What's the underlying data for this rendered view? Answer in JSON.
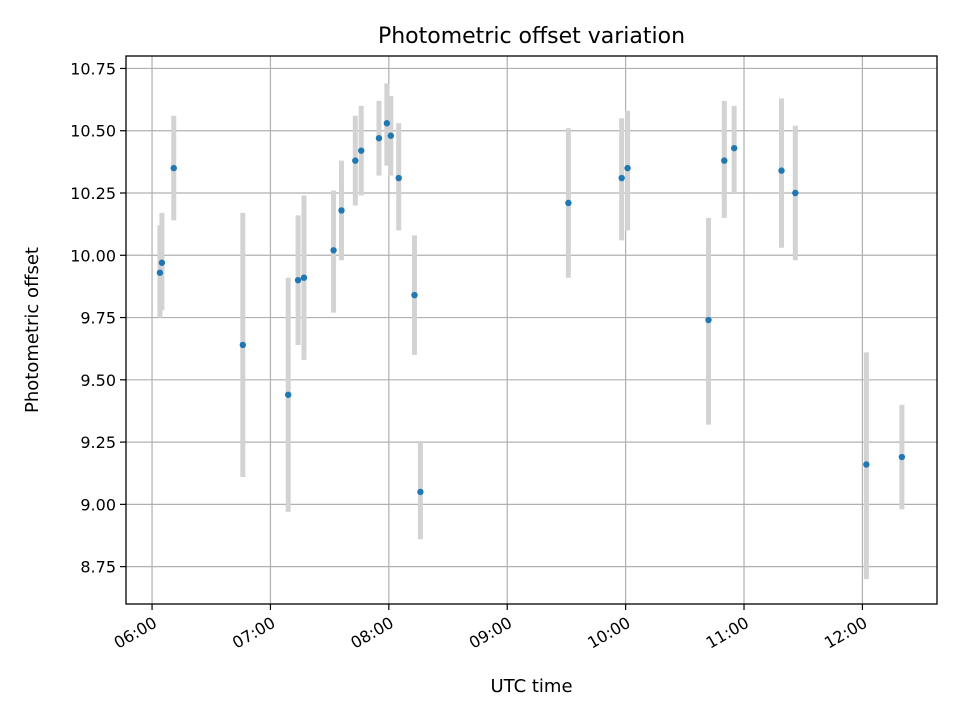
{
  "chart_data": {
    "type": "scatter",
    "title": "Photometric offset variation",
    "xlabel": "UTC time",
    "ylabel": "Photometric offset",
    "xlim_hours": [
      5.78,
      12.63
    ],
    "ylim": [
      8.6,
      10.8
    ],
    "grid": true,
    "x_ticks": [
      {
        "hour": 6,
        "label": "06:00"
      },
      {
        "hour": 7,
        "label": "07:00"
      },
      {
        "hour": 8,
        "label": "08:00"
      },
      {
        "hour": 9,
        "label": "09:00"
      },
      {
        "hour": 10,
        "label": "10:00"
      },
      {
        "hour": 11,
        "label": "11:00"
      },
      {
        "hour": 12,
        "label": "12:00"
      }
    ],
    "y_ticks": [
      {
        "value": 8.75,
        "label": "8.75"
      },
      {
        "value": 9.0,
        "label": "9.00"
      },
      {
        "value": 9.25,
        "label": "9.25"
      },
      {
        "value": 9.5,
        "label": "9.50"
      },
      {
        "value": 9.75,
        "label": "9.75"
      },
      {
        "value": 10.0,
        "label": "10.00"
      },
      {
        "value": 10.25,
        "label": "10.25"
      },
      {
        "value": 10.5,
        "label": "10.50"
      },
      {
        "value": 10.75,
        "label": "10.75"
      }
    ],
    "colors": {
      "point": "#1f77b4",
      "errorbar": "#d3d3d3"
    },
    "points": [
      {
        "time": "06:04",
        "y": 9.93,
        "lo": 9.75,
        "hi": 10.12
      },
      {
        "time": "06:05",
        "y": 9.97,
        "lo": 9.78,
        "hi": 10.17
      },
      {
        "time": "06:11",
        "y": 10.35,
        "lo": 10.14,
        "hi": 10.56
      },
      {
        "time": "06:46",
        "y": 9.64,
        "lo": 9.11,
        "hi": 10.17
      },
      {
        "time": "07:09",
        "y": 9.44,
        "lo": 8.97,
        "hi": 9.91
      },
      {
        "time": "07:14",
        "y": 9.9,
        "lo": 9.64,
        "hi": 10.16
      },
      {
        "time": "07:17",
        "y": 9.91,
        "lo": 9.58,
        "hi": 10.24
      },
      {
        "time": "07:32",
        "y": 10.02,
        "lo": 9.77,
        "hi": 10.26
      },
      {
        "time": "07:36",
        "y": 10.18,
        "lo": 9.98,
        "hi": 10.38
      },
      {
        "time": "07:43",
        "y": 10.38,
        "lo": 10.2,
        "hi": 10.56
      },
      {
        "time": "07:46",
        "y": 10.42,
        "lo": 10.24,
        "hi": 10.6
      },
      {
        "time": "07:55",
        "y": 10.47,
        "lo": 10.32,
        "hi": 10.62
      },
      {
        "time": "07:59",
        "y": 10.53,
        "lo": 10.36,
        "hi": 10.69
      },
      {
        "time": "08:01",
        "y": 10.48,
        "lo": 10.32,
        "hi": 10.64
      },
      {
        "time": "08:05",
        "y": 10.31,
        "lo": 10.1,
        "hi": 10.53
      },
      {
        "time": "08:13",
        "y": 9.84,
        "lo": 9.6,
        "hi": 10.08
      },
      {
        "time": "08:16",
        "y": 9.05,
        "lo": 8.86,
        "hi": 9.25
      },
      {
        "time": "09:31",
        "y": 10.21,
        "lo": 9.91,
        "hi": 10.51
      },
      {
        "time": "09:58",
        "y": 10.31,
        "lo": 10.06,
        "hi": 10.55
      },
      {
        "time": "10:01",
        "y": 10.35,
        "lo": 10.1,
        "hi": 10.58
      },
      {
        "time": "10:42",
        "y": 9.74,
        "lo": 9.32,
        "hi": 10.15
      },
      {
        "time": "10:50",
        "y": 10.38,
        "lo": 10.15,
        "hi": 10.62
      },
      {
        "time": "10:55",
        "y": 10.43,
        "lo": 10.25,
        "hi": 10.6
      },
      {
        "time": "11:19",
        "y": 10.34,
        "lo": 10.03,
        "hi": 10.63
      },
      {
        "time": "11:26",
        "y": 10.25,
        "lo": 9.98,
        "hi": 10.52
      },
      {
        "time": "12:02",
        "y": 9.16,
        "lo": 8.7,
        "hi": 9.61
      },
      {
        "time": "12:20",
        "y": 9.19,
        "lo": 8.98,
        "hi": 9.4
      }
    ]
  }
}
